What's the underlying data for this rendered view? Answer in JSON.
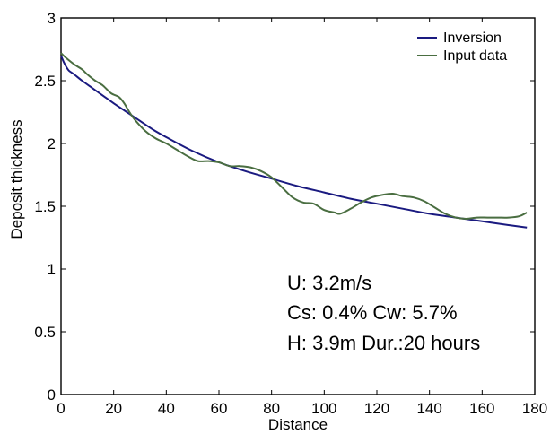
{
  "chart_data": {
    "type": "line",
    "xlabel": "Distance",
    "ylabel": "Deposit thickness",
    "xlim": [
      0,
      180
    ],
    "ylim": [
      0,
      3
    ],
    "xticks": [
      0,
      20,
      40,
      60,
      80,
      100,
      120,
      140,
      160,
      180
    ],
    "yticks": [
      0,
      0.5,
      1,
      1.5,
      2,
      2.5,
      3
    ],
    "xtick_labels": [
      "0",
      "20",
      "40",
      "60",
      "80",
      "100",
      "120",
      "140",
      "160",
      "180"
    ],
    "ytick_labels": [
      "0",
      "0.5",
      "1",
      "1.5",
      "2",
      "2.5",
      "3"
    ],
    "grid": false,
    "legend": {
      "placement": "top-right",
      "entries": [
        "Inversion",
        "Input data"
      ]
    },
    "series": [
      {
        "name": "Inversion",
        "color": "#1a1a80",
        "x": [
          0,
          1,
          2,
          3,
          5,
          8,
          12,
          16,
          20,
          25,
          30,
          35,
          40,
          50,
          60,
          70,
          80,
          90,
          100,
          110,
          120,
          130,
          140,
          150,
          160,
          170,
          177
        ],
        "y": [
          2.7,
          2.65,
          2.61,
          2.58,
          2.55,
          2.5,
          2.44,
          2.38,
          2.32,
          2.25,
          2.18,
          2.11,
          2.05,
          1.94,
          1.85,
          1.78,
          1.72,
          1.66,
          1.61,
          1.56,
          1.52,
          1.48,
          1.44,
          1.41,
          1.38,
          1.35,
          1.33
        ]
      },
      {
        "name": "Input data",
        "color": "#4a6e41",
        "x": [
          0,
          2,
          5,
          8,
          10,
          13,
          16,
          19,
          22,
          24,
          26,
          28,
          32,
          36,
          40,
          44,
          48,
          52,
          56,
          60,
          64,
          68,
          72,
          76,
          80,
          84,
          88,
          92,
          96,
          100,
          104,
          106,
          110,
          114,
          118,
          122,
          126,
          130,
          134,
          138,
          142,
          146,
          150,
          154,
          158,
          162,
          166,
          170,
          174,
          177
        ],
        "y": [
          2.72,
          2.68,
          2.63,
          2.59,
          2.55,
          2.5,
          2.46,
          2.4,
          2.37,
          2.32,
          2.25,
          2.19,
          2.1,
          2.04,
          2.0,
          1.95,
          1.9,
          1.86,
          1.86,
          1.85,
          1.82,
          1.82,
          1.81,
          1.78,
          1.73,
          1.65,
          1.57,
          1.53,
          1.52,
          1.47,
          1.45,
          1.44,
          1.48,
          1.53,
          1.57,
          1.59,
          1.6,
          1.58,
          1.57,
          1.54,
          1.49,
          1.44,
          1.41,
          1.4,
          1.41,
          1.41,
          1.41,
          1.41,
          1.42,
          1.45
        ]
      }
    ],
    "annotations": [
      "U: 3.2m/s",
      "Cs: 0.4% Cw: 5.7%",
      "H: 3.9m Dur.:20 hours"
    ]
  }
}
